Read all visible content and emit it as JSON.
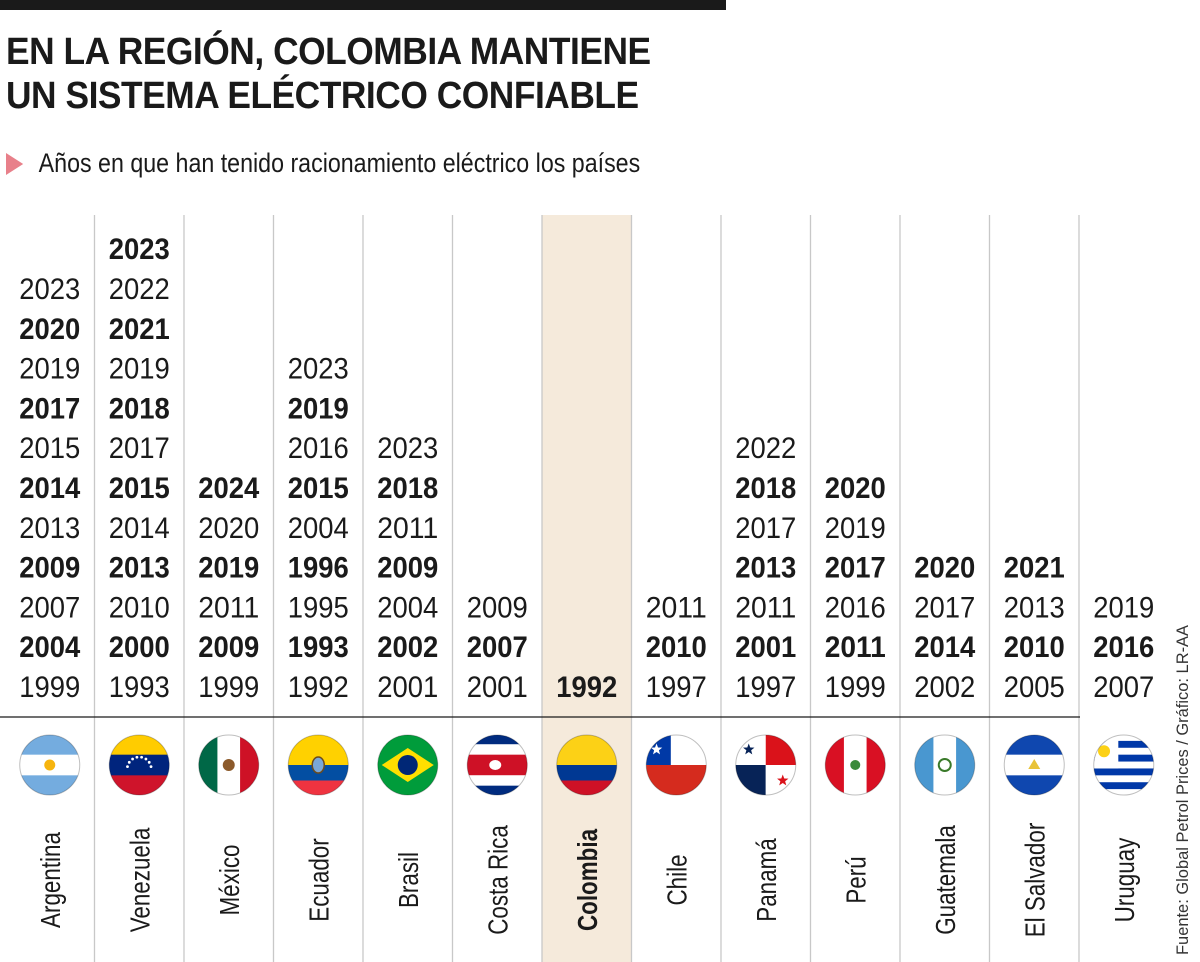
{
  "title": "EN LA REGIÓN, COLOMBIA MANTIENE UN SISTEMA ELÉCTRICO CONFIABLE",
  "subtitle": "Años en que han tenido racionamiento eléctrico los países",
  "source": "Fuente: Global Petrol Prices / Gráfico: LR-AA",
  "colors": {
    "highlight": "#f5eadb",
    "text": "#1a1a1a",
    "divider": "#c8c8c8",
    "marker": "#e8808a"
  },
  "chart_data": {
    "type": "table",
    "title": "EN LA REGIÓN, COLOMBIA MANTIENE UN SISTEMA ELÉCTRICO CONFIABLE",
    "subtitle": "Años en que han tenido racionamiento eléctrico los países",
    "highlight": "Colombia",
    "countries": [
      {
        "name": "Argentina",
        "flag": "argentina-flag-icon",
        "years": [
          2023,
          2020,
          2019,
          2017,
          2015,
          2014,
          2013,
          2009,
          2007,
          2004,
          1999
        ]
      },
      {
        "name": "Venezuela",
        "flag": "venezuela-flag-icon",
        "years": [
          2023,
          2022,
          2021,
          2019,
          2018,
          2017,
          2015,
          2014,
          2013,
          2010,
          2000,
          1993
        ]
      },
      {
        "name": "México",
        "flag": "mexico-flag-icon",
        "years": [
          2024,
          2020,
          2019,
          2011,
          2009,
          1999
        ]
      },
      {
        "name": "Ecuador",
        "flag": "ecuador-flag-icon",
        "years": [
          2023,
          2019,
          2016,
          2015,
          2004,
          1996,
          1995,
          1993,
          1992
        ]
      },
      {
        "name": "Brasil",
        "flag": "brasil-flag-icon",
        "years": [
          2023,
          2018,
          2011,
          2009,
          2004,
          2002,
          2001
        ]
      },
      {
        "name": "Costa Rica",
        "flag": "costa-rica-flag-icon",
        "years": [
          2009,
          2007,
          2001
        ]
      },
      {
        "name": "Colombia",
        "flag": "colombia-flag-icon",
        "years": [
          1992
        ]
      },
      {
        "name": "Chile",
        "flag": "chile-flag-icon",
        "years": [
          2011,
          2010,
          1997
        ]
      },
      {
        "name": "Panamá",
        "flag": "panama-flag-icon",
        "years": [
          2022,
          2018,
          2017,
          2013,
          2011,
          2001,
          1997
        ]
      },
      {
        "name": "Perú",
        "flag": "peru-flag-icon",
        "years": [
          2020,
          2019,
          2017,
          2016,
          2011,
          1999
        ]
      },
      {
        "name": "Guatemala",
        "flag": "guatemala-flag-icon",
        "years": [
          2020,
          2017,
          2014,
          2002
        ]
      },
      {
        "name": "El Salvador",
        "flag": "el-salvador-flag-icon",
        "years": [
          2021,
          2013,
          2010,
          2005
        ]
      },
      {
        "name": "Uruguay",
        "flag": "uruguay-flag-icon",
        "years": [
          2019,
          2016,
          2007
        ]
      }
    ]
  }
}
